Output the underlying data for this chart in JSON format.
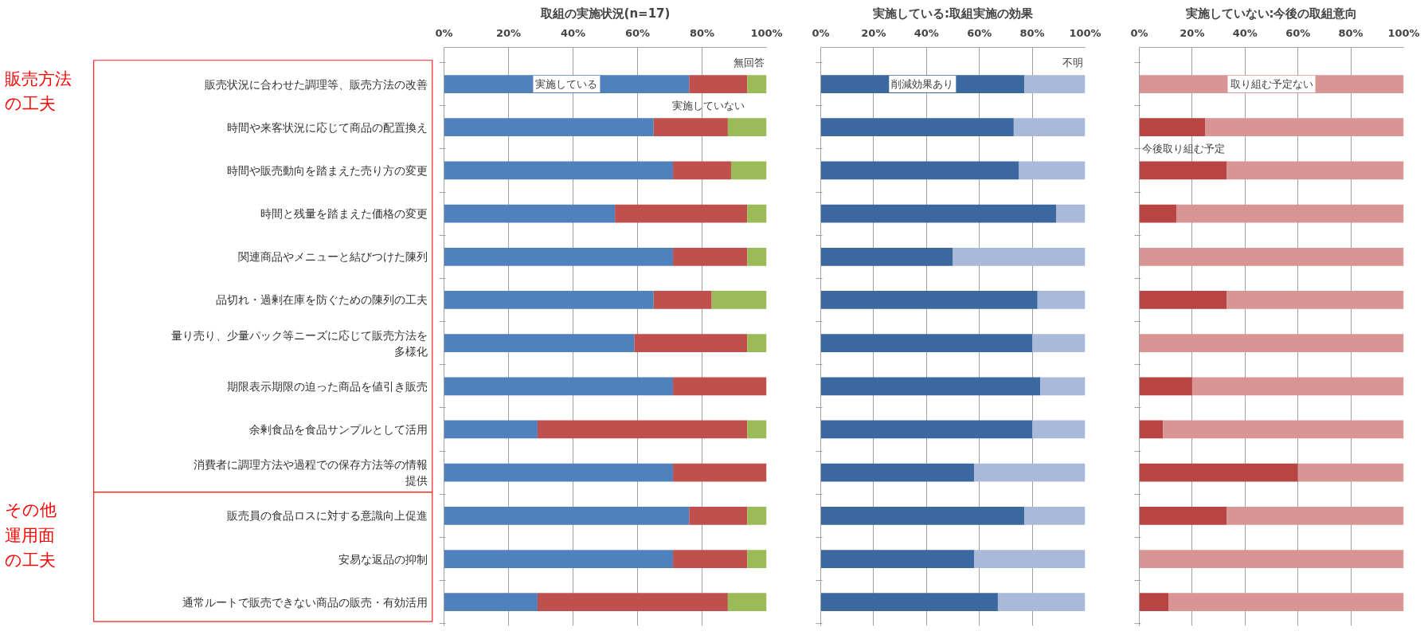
{
  "chart_data": [
    {
      "type": "bar",
      "orientation": "horizontal",
      "stacked": true,
      "title": "取組の実施状況(n=17)",
      "categories": [
        "販売状況に合わせた調理等、販売方法の改善",
        "時間や来客状況に応じて商品の配置換え",
        "時間や販売動向を踏まえた売り方の変更",
        "時間と残量を踏まえた価格の変更",
        "関連商品やメニューと結びつけた陳列",
        "品切れ・過剰在庫を防ぐための陳列の工夫",
        "量り売り、少量パック等ニーズに応じて販売方法を多様化",
        "期限表示期限の迫った商品を値引き販売",
        "余剰食品を食品サンプルとして活用",
        "消費者に調理方法や過程での保存方法等の情報提供",
        "販売員の食品ロスに対する意識向上促進",
        "安易な返品の抑制",
        "通常ルートで販売できない商品の販売・有効活用"
      ],
      "series": [
        {
          "name": "実施している",
          "color": "#4f81bd",
          "values": [
            76,
            65,
            71,
            53,
            71,
            65,
            59,
            71,
            29,
            71,
            76,
            71,
            29
          ]
        },
        {
          "name": "実施していない",
          "color": "#c0504d",
          "values": [
            18,
            23,
            18,
            41,
            23,
            18,
            35,
            29,
            65,
            29,
            18,
            23,
            59
          ]
        },
        {
          "name": "無回答",
          "color": "#9bbb59",
          "values": [
            6,
            12,
            11,
            6,
            6,
            17,
            6,
            0,
            6,
            0,
            6,
            6,
            12
          ]
        }
      ],
      "xlim": [
        0,
        100
      ],
      "xticks": [
        {
          "value": 0,
          "label": "0%"
        },
        {
          "value": 20,
          "label": "20%"
        },
        {
          "value": 40,
          "label": "40%"
        },
        {
          "value": 60,
          "label": "60%"
        },
        {
          "value": 80,
          "label": "80%"
        },
        {
          "value": 100,
          "label": "100%"
        }
      ],
      "grid": "x",
      "annotations": [
        "販売方法の工夫",
        "その他運用面の工夫"
      ]
    },
    {
      "type": "bar",
      "orientation": "horizontal",
      "stacked": true,
      "title": "実施している:取組実施の効果",
      "tick_labels": "x",
      "categories": [
        "販売状況に合わせた調理等、販売方法の改善",
        "時間や来客状況に応じて商品の配置換え",
        "時間や販売動向を踏まえた売り方の変更",
        "時間と残量を踏まえた価格の変更",
        "関連商品やメニューと結びつけた陳列",
        "品切れ・過剰在庫を防ぐための陳列の工夫",
        "量り売り、少量パック等ニーズに応じて販売方法を多様化",
        "期限表示期限の迫った商品を値引き販売",
        "余剰食品を食品サンプルとして活用",
        "消費者に調理方法や過程での保存方法等の情報提供",
        "販売員の食品ロスに対する意識向上促進",
        "安易な返品の抑制",
        "通常ルートで販売できない商品の販売・有効活用"
      ],
      "series": [
        {
          "name": "削減効果あり",
          "color": "#3c68a0",
          "values": [
            77,
            73,
            75,
            89,
            50,
            82,
            80,
            83,
            80,
            58,
            77,
            58,
            67
          ]
        },
        {
          "name": "不明",
          "color": "#a9b9d9",
          "values": [
            23,
            27,
            25,
            11,
            50,
            18,
            20,
            17,
            20,
            42,
            23,
            42,
            33
          ]
        }
      ],
      "xlim": [
        0,
        100
      ],
      "xticks": [
        {
          "value": 0,
          "label": "0%"
        },
        {
          "value": 20,
          "label": "20%"
        },
        {
          "value": 40,
          "label": "40%"
        },
        {
          "value": 60,
          "label": "60%"
        },
        {
          "value": 80,
          "label": "80%"
        },
        {
          "value": 100,
          "label": "100%"
        }
      ],
      "grid": "x"
    },
    {
      "type": "bar",
      "orientation": "horizontal",
      "stacked": true,
      "title": "実施していない:今後の取組意向",
      "tick_labels": "x",
      "categories": [
        "販売状況に合わせた調理等、販売方法の改善",
        "時間や来客状況に応じて商品の配置換え",
        "時間や販売動向を踏まえた売り方の変更",
        "時間と残量を踏まえた価格の変更",
        "関連商品やメニューと結びつけた陳列",
        "品切れ・過剰在庫を防ぐための陳列の工夫",
        "量り売り、少量パック等ニーズに応じて販売方法を多様化",
        "期限表示期限の迫った商品を値引き販売",
        "余剰食品を食品サンプルとして活用",
        "消費者に調理方法や過程での保存方法等の情報提供",
        "販売員の食品ロスに対する意識向上促進",
        "安易な返品の抑制",
        "通常ルートで販売できない商品の販売・有効活用"
      ],
      "series": [
        {
          "name": "今後取り組む予定",
          "color": "#b94444",
          "values": [
            0,
            25,
            33,
            14,
            0,
            33,
            0,
            20,
            9,
            60,
            33,
            0,
            11
          ]
        },
        {
          "name": "取り組む予定ない",
          "color": "#d99594",
          "values": [
            100,
            75,
            67,
            86,
            100,
            67,
            100,
            80,
            91,
            40,
            67,
            100,
            89
          ]
        }
      ],
      "xlim": [
        0,
        100
      ],
      "xticks": [
        {
          "value": 0,
          "label": "0%"
        },
        {
          "value": 20,
          "label": "20%"
        },
        {
          "value": 40,
          "label": "40%"
        },
        {
          "value": 60,
          "label": "60%"
        },
        {
          "value": 80,
          "label": "80%"
        },
        {
          "value": 100,
          "label": "100%"
        }
      ],
      "grid": "x"
    }
  ]
}
